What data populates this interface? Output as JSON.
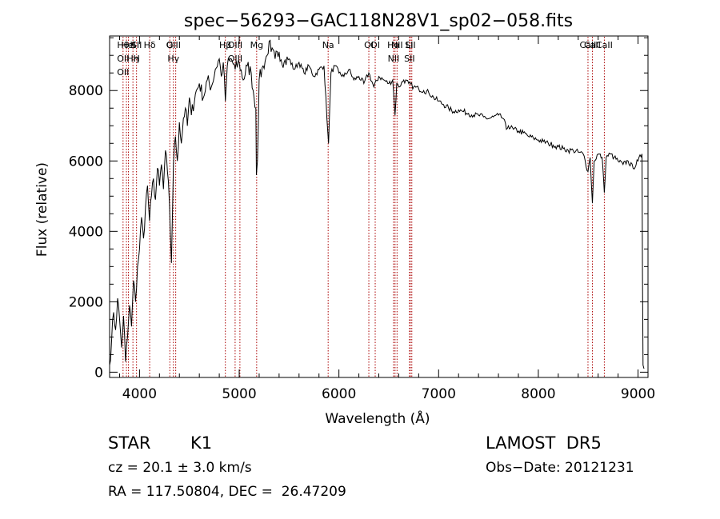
{
  "chart_data": {
    "type": "line",
    "title": "spec−56293−GAC118N28V1_sp02−058.fits",
    "xlabel": "Wavelength (Å)",
    "ylabel": "Flux (relative)",
    "xlim": [
      3700,
      9100
    ],
    "ylim": [
      -150,
      9550
    ],
    "xticks": [
      4000,
      5000,
      6000,
      7000,
      8000,
      9000
    ],
    "yticks": [
      0,
      2000,
      4000,
      6000,
      8000
    ],
    "grid": false,
    "line_color": "#000000",
    "marker_color": "#aa0000",
    "series": [
      {
        "points": [
          [
            3700,
            200
          ],
          [
            3720,
            900
          ],
          [
            3740,
            1700
          ],
          [
            3760,
            1200
          ],
          [
            3780,
            2100
          ],
          [
            3800,
            1500
          ],
          [
            3820,
            700
          ],
          [
            3840,
            1600
          ],
          [
            3860,
            300
          ],
          [
            3880,
            1000
          ],
          [
            3900,
            1900
          ],
          [
            3920,
            1300
          ],
          [
            3940,
            2600
          ],
          [
            3960,
            2000
          ],
          [
            3980,
            3000
          ],
          [
            4000,
            3500
          ],
          [
            4020,
            4400
          ],
          [
            4040,
            3800
          ],
          [
            4060,
            4700
          ],
          [
            4080,
            5300
          ],
          [
            4100,
            4300
          ],
          [
            4120,
            5000
          ],
          [
            4140,
            5500
          ],
          [
            4160,
            4900
          ],
          [
            4180,
            5800
          ],
          [
            4200,
            5300
          ],
          [
            4220,
            5900
          ],
          [
            4240,
            5200
          ],
          [
            4260,
            6300
          ],
          [
            4280,
            5700
          ],
          [
            4300,
            4800
          ],
          [
            4320,
            3100
          ],
          [
            4340,
            5900
          ],
          [
            4360,
            6700
          ],
          [
            4380,
            6000
          ],
          [
            4400,
            7100
          ],
          [
            4420,
            6500
          ],
          [
            4440,
            7200
          ],
          [
            4460,
            7500
          ],
          [
            4480,
            7000
          ],
          [
            4500,
            7800
          ],
          [
            4520,
            7300
          ],
          [
            4560,
            7900
          ],
          [
            4600,
            8200
          ],
          [
            4640,
            7800
          ],
          [
            4680,
            8300
          ],
          [
            4720,
            8100
          ],
          [
            4760,
            8600
          ],
          [
            4800,
            8900
          ],
          [
            4820,
            8400
          ],
          [
            4840,
            8800
          ],
          [
            4861,
            7700
          ],
          [
            4880,
            8700
          ],
          [
            4920,
            8900
          ],
          [
            4960,
            8600
          ],
          [
            5000,
            8800
          ],
          [
            5040,
            8300
          ],
          [
            5080,
            8700
          ],
          [
            5120,
            8500
          ],
          [
            5140,
            8000
          ],
          [
            5167,
            7500
          ],
          [
            5172,
            5600
          ],
          [
            5183,
            6000
          ],
          [
            5200,
            8300
          ],
          [
            5240,
            8700
          ],
          [
            5280,
            9000
          ],
          [
            5300,
            9400
          ],
          [
            5320,
            9100
          ],
          [
            5360,
            8900
          ],
          [
            5400,
            9100
          ],
          [
            5450,
            8800
          ],
          [
            5500,
            8900
          ],
          [
            5550,
            8600
          ],
          [
            5600,
            8800
          ],
          [
            5650,
            8500
          ],
          [
            5700,
            8700
          ],
          [
            5750,
            8400
          ],
          [
            5800,
            8600
          ],
          [
            5850,
            8700
          ],
          [
            5889,
            6800
          ],
          [
            5896,
            6500
          ],
          [
            5920,
            8500
          ],
          [
            5960,
            8700
          ],
          [
            6000,
            8500
          ],
          [
            6050,
            8400
          ],
          [
            6100,
            8600
          ],
          [
            6150,
            8300
          ],
          [
            6200,
            8400
          ],
          [
            6250,
            8200
          ],
          [
            6300,
            8500
          ],
          [
            6350,
            8100
          ],
          [
            6400,
            8400
          ],
          [
            6450,
            8300
          ],
          [
            6500,
            8200
          ],
          [
            6540,
            8300
          ],
          [
            6563,
            7300
          ],
          [
            6580,
            8200
          ],
          [
            6600,
            8100
          ],
          [
            6650,
            8300
          ],
          [
            6700,
            8200
          ],
          [
            6750,
            8100
          ],
          [
            6800,
            8050
          ],
          [
            6850,
            8000
          ],
          [
            6900,
            7950
          ],
          [
            6950,
            7800
          ],
          [
            7000,
            7700
          ],
          [
            7050,
            7600
          ],
          [
            7100,
            7500
          ],
          [
            7150,
            7400
          ],
          [
            7200,
            7450
          ],
          [
            7250,
            7400
          ],
          [
            7300,
            7350
          ],
          [
            7350,
            7300
          ],
          [
            7400,
            7300
          ],
          [
            7450,
            7250
          ],
          [
            7500,
            7200
          ],
          [
            7550,
            7250
          ],
          [
            7600,
            7300
          ],
          [
            7650,
            7200
          ],
          [
            7680,
            6900
          ],
          [
            7700,
            7000
          ],
          [
            7750,
            6900
          ],
          [
            7800,
            6850
          ],
          [
            7850,
            6800
          ],
          [
            7900,
            6700
          ],
          [
            7950,
            6650
          ],
          [
            8000,
            6600
          ],
          [
            8050,
            6550
          ],
          [
            8100,
            6500
          ],
          [
            8150,
            6450
          ],
          [
            8200,
            6400
          ],
          [
            8250,
            6350
          ],
          [
            8300,
            6300
          ],
          [
            8350,
            6300
          ],
          [
            8400,
            6250
          ],
          [
            8450,
            6200
          ],
          [
            8498,
            5700
          ],
          [
            8520,
            6100
          ],
          [
            8542,
            4800
          ],
          [
            8560,
            6000
          ],
          [
            8600,
            6200
          ],
          [
            8640,
            6100
          ],
          [
            8662,
            5100
          ],
          [
            8680,
            6100
          ],
          [
            8720,
            6200
          ],
          [
            8760,
            6100
          ],
          [
            8800,
            6000
          ],
          [
            8850,
            5900
          ],
          [
            8900,
            6000
          ],
          [
            8950,
            5800
          ],
          [
            9000,
            6000
          ],
          [
            9040,
            6200
          ],
          [
            9045,
            2800
          ],
          [
            9050,
            200
          ],
          [
            9060,
            100
          ]
        ]
      }
    ],
    "lines": [
      {
        "x": 3835,
        "labels": [
          "Hθ",
          "OII",
          "OII"
        ]
      },
      {
        "x": 3869,
        "labels": []
      },
      {
        "x": 3889,
        "labels": [
          "HeI"
        ]
      },
      {
        "x": 3934,
        "labels": [
          "K",
          "Hη"
        ]
      },
      {
        "x": 3970,
        "labels": [
          "SII",
          "H"
        ]
      },
      {
        "x": 4102,
        "labels": [
          "Hδ"
        ]
      },
      {
        "x": 4304,
        "labels": [
          "G"
        ]
      },
      {
        "x": 4340,
        "labels": [
          "OIII",
          "Hγ"
        ]
      },
      {
        "x": 4363,
        "labels": []
      },
      {
        "x": 4861,
        "labels": [
          "Hβ"
        ]
      },
      {
        "x": 4959,
        "labels": [
          "OIII",
          "OIII"
        ]
      },
      {
        "x": 5007,
        "labels": []
      },
      {
        "x": 5175,
        "labels": [
          "Mg"
        ]
      },
      {
        "x": 5892,
        "labels": [
          "Na"
        ]
      },
      {
        "x": 6300,
        "labels": [
          "OI"
        ]
      },
      {
        "x": 6364,
        "labels": [
          "OI"
        ]
      },
      {
        "x": 6548,
        "labels": [
          "Hα",
          "NII"
        ]
      },
      {
        "x": 6563,
        "labels": []
      },
      {
        "x": 6583,
        "labels": [
          "NII"
        ]
      },
      {
        "x": 6708,
        "labels": [
          "Li",
          "SII"
        ]
      },
      {
        "x": 6716,
        "labels": [
          "SII"
        ]
      },
      {
        "x": 6731,
        "labels": []
      },
      {
        "x": 8498,
        "labels": [
          "CaII"
        ]
      },
      {
        "x": 8542,
        "labels": [
          "CaII"
        ]
      },
      {
        "x": 8662,
        "labels": [
          "CaII"
        ]
      }
    ]
  },
  "info": {
    "class": "STAR",
    "subclass": "K1",
    "survey": "LAMOST  DR5",
    "cz": "cz = 20.1 ± 3.0 km/s",
    "obs_date": "Obs−Date: 20121231",
    "radec": "RA = 117.50804, DEC =  26.47209"
  }
}
